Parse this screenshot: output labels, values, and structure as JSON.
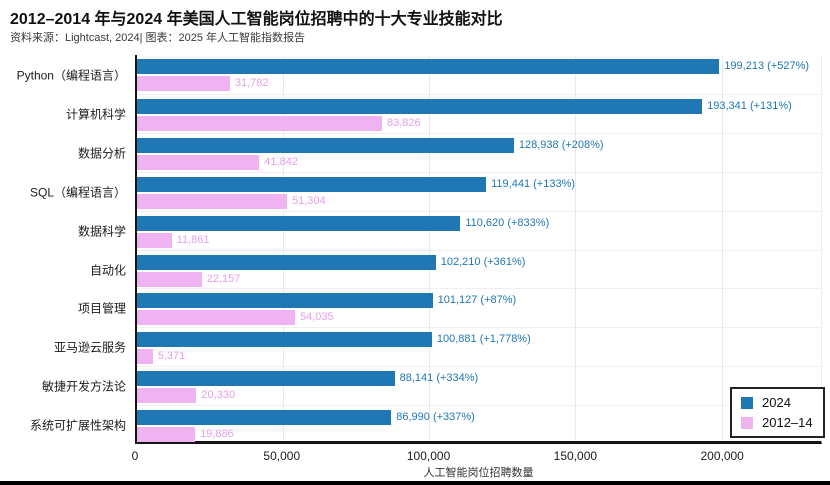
{
  "page": {
    "title": "2012–2014 年与2024 年美国人工智能岗位招聘中的十大专业技能对比",
    "source": "资料来源：Lightcast, 2024| 图表：2025 年人工智能指数报告"
  },
  "chart_data": {
    "type": "bar",
    "orientation": "horizontal",
    "title": "2012–2014 年与2024 年美国人工智能岗位招聘中的十大专业技能对比",
    "subtitle": "资料来源：Lightcast, 2024| 图表：2025 年人工智能指数报告",
    "xlabel": "人工智能岗位招聘数量",
    "ylabel": "",
    "xlim": [
      0,
      234000
    ],
    "grid": true,
    "legend_position": "lower right",
    "xticks": [
      {
        "value": 0,
        "label": "0"
      },
      {
        "value": 50000,
        "label": "50,000"
      },
      {
        "value": 100000,
        "label": "100,000"
      },
      {
        "value": 150000,
        "label": "150,000"
      },
      {
        "value": 200000,
        "label": "200,000"
      }
    ],
    "categories": [
      "Python（编程语言）",
      "计算机科学",
      "数据分析",
      "SQL（编程语言）",
      "数据科学",
      "自动化",
      "项目管理",
      "亚马逊云服务",
      "敏捷开发方法论",
      "系统可扩展性架构"
    ],
    "series": [
      {
        "name": "2024",
        "color": "#1F77B4",
        "label_color": "#1F77B4",
        "values": [
          199213,
          193341,
          128938,
          119441,
          110620,
          102210,
          101127,
          100881,
          88141,
          86990
        ],
        "labels": [
          "199,213 (+527%)",
          "193,341 (+131%)",
          "128,938 (+208%)",
          "119,441 (+133%)",
          "110,620 (+833%)",
          "102,210 (+361%)",
          "101,127 (+87%)",
          "100,881 (+1,778%)",
          "88,141 (+334%)",
          "86,990 (+337%)"
        ]
      },
      {
        "name": "2012–14",
        "color": "#EFB3F2",
        "label_color": "#E49FEA",
        "values": [
          31782,
          83826,
          41842,
          51304,
          11861,
          22157,
          54035,
          5371,
          20330,
          19886
        ],
        "labels": [
          "31,782",
          "83,826",
          "41,842",
          "51,304",
          "11,861",
          "22,157",
          "54,035",
          "5,371",
          "20,330",
          "19,886"
        ]
      }
    ]
  }
}
